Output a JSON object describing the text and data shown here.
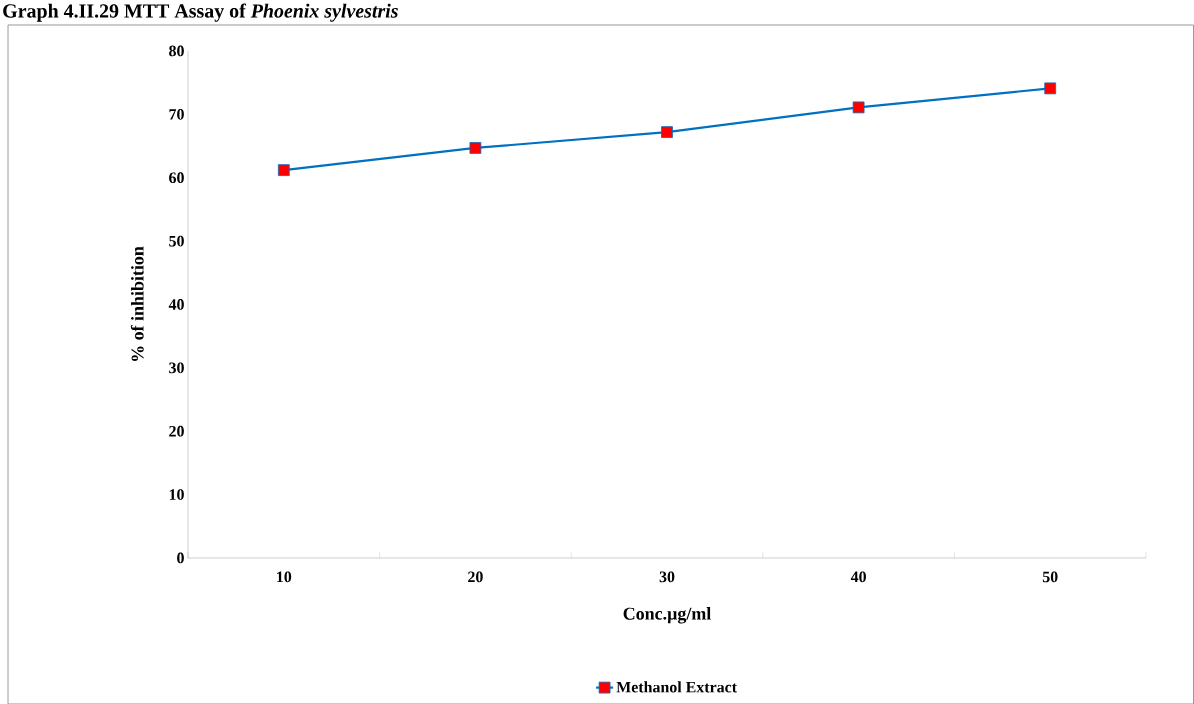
{
  "chart_data": {
    "type": "line",
    "title": "Graph 4.II.29 MTT Assay of *Phoenix sylvestris*",
    "xlabel": "Conc.µg/ml",
    "ylabel": "% of inhibition",
    "categories": [
      "10",
      "20",
      "30",
      "40",
      "50"
    ],
    "series": [
      {
        "name": "Methanol Extract",
        "color": "#0070c0",
        "colors": [
          "#ff0000",
          "#ff0000",
          "#ff0000",
          "#ff0000",
          "#ff0000"
        ],
        "values": [
          61.2,
          64.7,
          67.2,
          71.1,
          74.1
        ]
      }
    ],
    "ylim": [
      0,
      80
    ],
    "yticks": [
      0,
      10,
      20,
      30,
      40,
      50,
      60,
      70,
      80
    ],
    "grid": false,
    "legend": "bottom",
    "marker": "square",
    "line_style": "solid"
  }
}
